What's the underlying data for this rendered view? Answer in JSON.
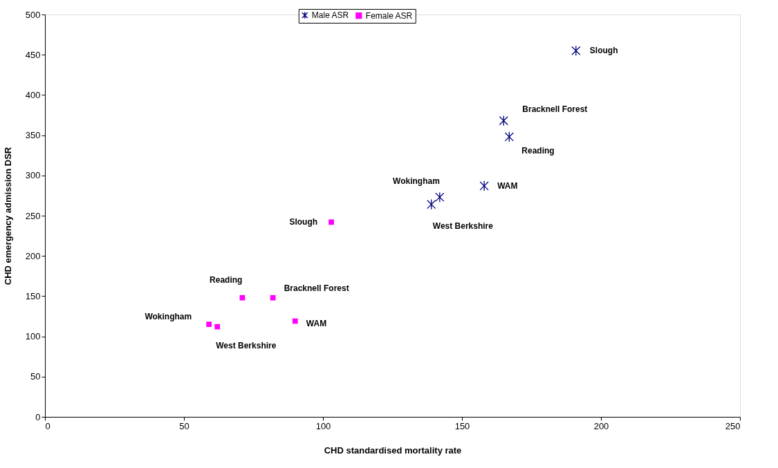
{
  "chart_data": {
    "type": "scatter",
    "xlabel": "CHD standardised mortality rate",
    "ylabel": "CHD emergency admission DSR",
    "xlim": [
      0,
      250
    ],
    "xticks": [
      0,
      50,
      100,
      150,
      200,
      250
    ],
    "ylim": [
      0,
      500
    ],
    "yticks": [
      0,
      50,
      100,
      150,
      200,
      250,
      300,
      350,
      400,
      450,
      500
    ],
    "grid": false,
    "legend": "top",
    "series": [
      {
        "name": "Male ASR",
        "color": "#000080",
        "marker": "cross",
        "x": [
          191,
          165,
          167,
          158,
          142,
          139
        ],
        "values": [
          455,
          368,
          348,
          287,
          273,
          264
        ],
        "value_labels": [
          "Slough",
          "Bracknell Forest",
          "Reading",
          "WAM",
          "Wokingham",
          "West Berkshire"
        ]
      },
      {
        "name": "Female ASR",
        "color": "#ff00ff",
        "marker": "square",
        "x": [
          103,
          71,
          82,
          90,
          59,
          62
        ],
        "values": [
          242,
          148,
          148,
          119,
          115,
          112
        ],
        "value_labels": [
          "Slough",
          "Reading",
          "Bracknell Forest",
          "WAM",
          "Wokingham",
          "West Berkshire"
        ]
      }
    ]
  }
}
